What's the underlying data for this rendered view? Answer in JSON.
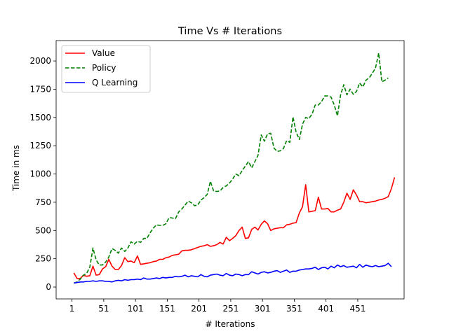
{
  "chart_data": {
    "type": "line",
    "title": "Time Vs # Iterations",
    "xlabel": "# Iterations",
    "ylabel": "Time in ms",
    "xlim": [
      -24,
      524
    ],
    "ylim": [
      -105,
      2180
    ],
    "xticks": [
      1,
      51,
      101,
      151,
      201,
      251,
      301,
      351,
      401,
      451
    ],
    "yticks": [
      0,
      250,
      500,
      750,
      1000,
      1250,
      1500,
      1750,
      2000
    ],
    "x_start": 4,
    "x_step": 5,
    "grid": false,
    "legend": "top-left",
    "series": [
      {
        "name": "Value",
        "color": "#ff0000",
        "dash": "solid",
        "values": [
          125,
          75,
          75,
          105,
          95,
          100,
          185,
          105,
          110,
          160,
          180,
          245,
          185,
          155,
          155,
          190,
          260,
          225,
          230,
          215,
          275,
          200,
          205,
          210,
          215,
          225,
          230,
          245,
          245,
          260,
          265,
          280,
          285,
          290,
          320,
          325,
          325,
          330,
          340,
          350,
          360,
          365,
          375,
          360,
          365,
          375,
          395,
          380,
          440,
          410,
          430,
          455,
          500,
          530,
          430,
          435,
          510,
          530,
          505,
          555,
          585,
          560,
          500,
          515,
          520,
          525,
          525,
          550,
          555,
          565,
          570,
          655,
          710,
          905,
          665,
          670,
          675,
          795,
          690,
          690,
          695,
          665,
          665,
          680,
          690,
          750,
          830,
          775,
          860,
          815,
          755,
          755,
          745,
          750,
          755,
          760,
          770,
          775,
          785,
          800,
          870,
          970
        ]
      },
      {
        "name": "Policy",
        "color": "#008000",
        "dash": "dashed",
        "values": [
          35,
          45,
          70,
          105,
          120,
          175,
          345,
          240,
          195,
          195,
          220,
          265,
          340,
          325,
          300,
          345,
          315,
          345,
          400,
          380,
          405,
          395,
          430,
          430,
          480,
          520,
          550,
          545,
          545,
          560,
          615,
          610,
          605,
          665,
          690,
          725,
          760,
          745,
          720,
          725,
          770,
          790,
          820,
          935,
          850,
          845,
          850,
          880,
          895,
          920,
          955,
          1000,
          985,
          1030,
          1070,
          1110,
          1055,
          1110,
          1165,
          1345,
          1290,
          1355,
          1360,
          1230,
          1200,
          1205,
          1225,
          1295,
          1280,
          1505,
          1370,
          1305,
          1440,
          1500,
          1490,
          1530,
          1610,
          1610,
          1640,
          1690,
          1690,
          1680,
          1610,
          1515,
          1700,
          1790,
          1700,
          1750,
          1705,
          1730,
          1805,
          1770,
          1830,
          1850,
          1890,
          1940,
          2070,
          1815,
          1830,
          1850
        ]
      },
      {
        "name": "Q Learning",
        "color": "#0000ff",
        "dash": "solid",
        "values": [
          35,
          40,
          45,
          45,
          50,
          50,
          55,
          50,
          55,
          55,
          50,
          50,
          45,
          55,
          60,
          55,
          65,
          60,
          65,
          65,
          70,
          65,
          80,
          70,
          70,
          75,
          80,
          75,
          85,
          80,
          85,
          85,
          95,
          90,
          95,
          105,
          90,
          100,
          95,
          90,
          110,
          95,
          90,
          105,
          110,
          115,
          105,
          100,
          120,
          105,
          100,
          115,
          110,
          100,
          110,
          110,
          135,
          125,
          115,
          130,
          135,
          125,
          130,
          140,
          145,
          130,
          140,
          150,
          130,
          140,
          140,
          150,
          155,
          160,
          160,
          165,
          175,
          155,
          170,
          175,
          160,
          185,
          170,
          195,
          180,
          190,
          175,
          180,
          185,
          170,
          200,
          175,
          195,
          185,
          180,
          190,
          180,
          185,
          190,
          210,
          180
        ]
      }
    ]
  }
}
